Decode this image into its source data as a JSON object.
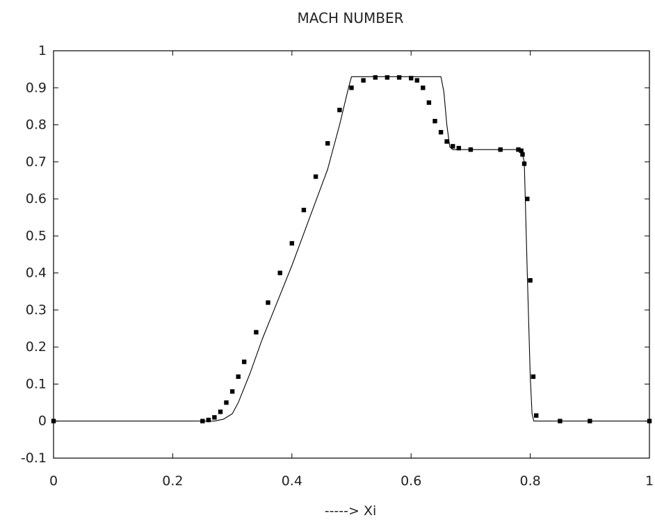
{
  "chart_data": {
    "type": "line",
    "title": "MACH NUMBER",
    "xlabel": "-----> Xi",
    "ylabel": "",
    "xlim": [
      0,
      1
    ],
    "ylim": [
      -0.1,
      1
    ],
    "xticks": [
      0,
      0.2,
      0.4,
      0.6,
      0.8,
      1
    ],
    "xtick_labels": [
      "0",
      "0.2",
      "0.4",
      "0.6",
      "0.8",
      "1"
    ],
    "yticks": [
      -0.1,
      0,
      0.1,
      0.2,
      0.3,
      0.4,
      0.5,
      0.6,
      0.7,
      0.8,
      0.9,
      1
    ],
    "ytick_labels": [
      "-0.1",
      "0",
      "0.1",
      "0.2",
      "0.3",
      "0.4",
      "0.5",
      "0.6",
      "0.7",
      "0.8",
      "0.9",
      "1"
    ],
    "grid": false,
    "legend": "none",
    "series": [
      {
        "style": "line",
        "color": "#000000",
        "x": [
          0,
          0.27,
          0.285,
          0.3,
          0.31,
          0.33,
          0.35,
          0.37,
          0.4,
          0.43,
          0.46,
          0.48,
          0.495,
          0.5,
          0.52,
          0.55,
          0.6,
          0.63,
          0.65,
          0.655,
          0.66,
          0.665,
          0.67,
          0.7,
          0.75,
          0.785,
          0.79,
          0.795,
          0.8,
          0.803,
          0.806,
          0.85,
          0.9,
          1
        ],
        "y": [
          0,
          0,
          0.005,
          0.02,
          0.05,
          0.13,
          0.22,
          0.3,
          0.42,
          0.55,
          0.68,
          0.8,
          0.9,
          0.93,
          0.93,
          0.93,
          0.93,
          0.93,
          0.93,
          0.89,
          0.8,
          0.74,
          0.733,
          0.733,
          0.733,
          0.733,
          0.7,
          0.4,
          0.12,
          0.02,
          0,
          0,
          0,
          0
        ]
      },
      {
        "style": "markers",
        "color": "#000000",
        "x": [
          0,
          0.25,
          0.26,
          0.27,
          0.28,
          0.29,
          0.3,
          0.31,
          0.32,
          0.34,
          0.36,
          0.38,
          0.4,
          0.42,
          0.44,
          0.46,
          0.48,
          0.5,
          0.52,
          0.54,
          0.56,
          0.58,
          0.6,
          0.61,
          0.62,
          0.63,
          0.64,
          0.65,
          0.66,
          0.67,
          0.68,
          0.7,
          0.75,
          0.78,
          0.785,
          0.787,
          0.79,
          0.795,
          0.8,
          0.805,
          0.81,
          0.85,
          0.9,
          1
        ],
        "y": [
          0,
          0,
          0.003,
          0.01,
          0.025,
          0.05,
          0.08,
          0.12,
          0.16,
          0.24,
          0.32,
          0.4,
          0.48,
          0.57,
          0.66,
          0.75,
          0.84,
          0.9,
          0.92,
          0.928,
          0.928,
          0.928,
          0.926,
          0.92,
          0.9,
          0.86,
          0.81,
          0.78,
          0.755,
          0.742,
          0.737,
          0.733,
          0.733,
          0.733,
          0.73,
          0.72,
          0.695,
          0.6,
          0.38,
          0.12,
          0.015,
          0,
          0,
          0
        ]
      }
    ]
  }
}
